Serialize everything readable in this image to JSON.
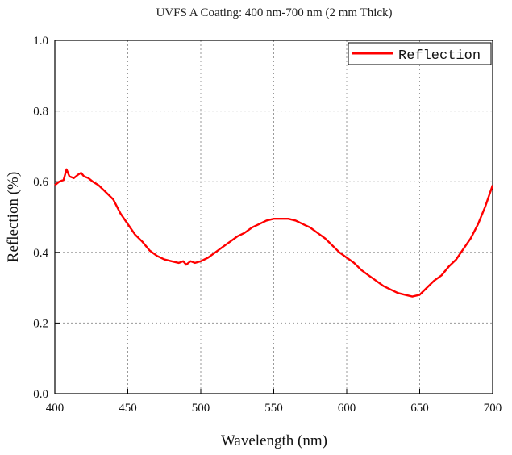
{
  "chart_data": {
    "type": "line",
    "title": "UVFS A Coating: 400 nm-700 nm (2 mm Thick)",
    "xlabel": "Wavelength (nm)",
    "ylabel": "Reflection (%)",
    "xlim": [
      400,
      700
    ],
    "ylim": [
      0.0,
      1.0
    ],
    "x_ticks": [
      "400",
      "450",
      "500",
      "550",
      "600",
      "650",
      "700"
    ],
    "y_ticks": [
      "0.0",
      "0.2",
      "0.4",
      "0.6",
      "0.8",
      "1.0"
    ],
    "grid": true,
    "legend_position": "top-right",
    "series": [
      {
        "name": "Reflection",
        "color": "#ff0000",
        "x": [
          400,
          403,
          406,
          408,
          410,
          413,
          416,
          418,
          420,
          423,
          426,
          430,
          435,
          440,
          445,
          450,
          455,
          460,
          465,
          470,
          475,
          480,
          485,
          488,
          490,
          493,
          496,
          500,
          505,
          510,
          515,
          520,
          525,
          530,
          535,
          540,
          545,
          550,
          555,
          560,
          565,
          570,
          575,
          580,
          585,
          590,
          595,
          600,
          605,
          610,
          615,
          620,
          625,
          630,
          635,
          640,
          645,
          650,
          655,
          660,
          665,
          670,
          675,
          680,
          685,
          690,
          695,
          700
        ],
        "y": [
          0.59,
          0.6,
          0.605,
          0.635,
          0.615,
          0.61,
          0.62,
          0.625,
          0.615,
          0.61,
          0.6,
          0.59,
          0.57,
          0.55,
          0.51,
          0.48,
          0.45,
          0.43,
          0.405,
          0.39,
          0.38,
          0.375,
          0.37,
          0.375,
          0.365,
          0.375,
          0.37,
          0.375,
          0.385,
          0.4,
          0.415,
          0.43,
          0.445,
          0.455,
          0.47,
          0.48,
          0.49,
          0.495,
          0.495,
          0.495,
          0.49,
          0.48,
          0.47,
          0.455,
          0.44,
          0.42,
          0.4,
          0.385,
          0.37,
          0.35,
          0.335,
          0.32,
          0.305,
          0.295,
          0.285,
          0.28,
          0.275,
          0.28,
          0.3,
          0.32,
          0.335,
          0.36,
          0.38,
          0.41,
          0.44,
          0.48,
          0.53,
          0.59
        ]
      }
    ]
  }
}
